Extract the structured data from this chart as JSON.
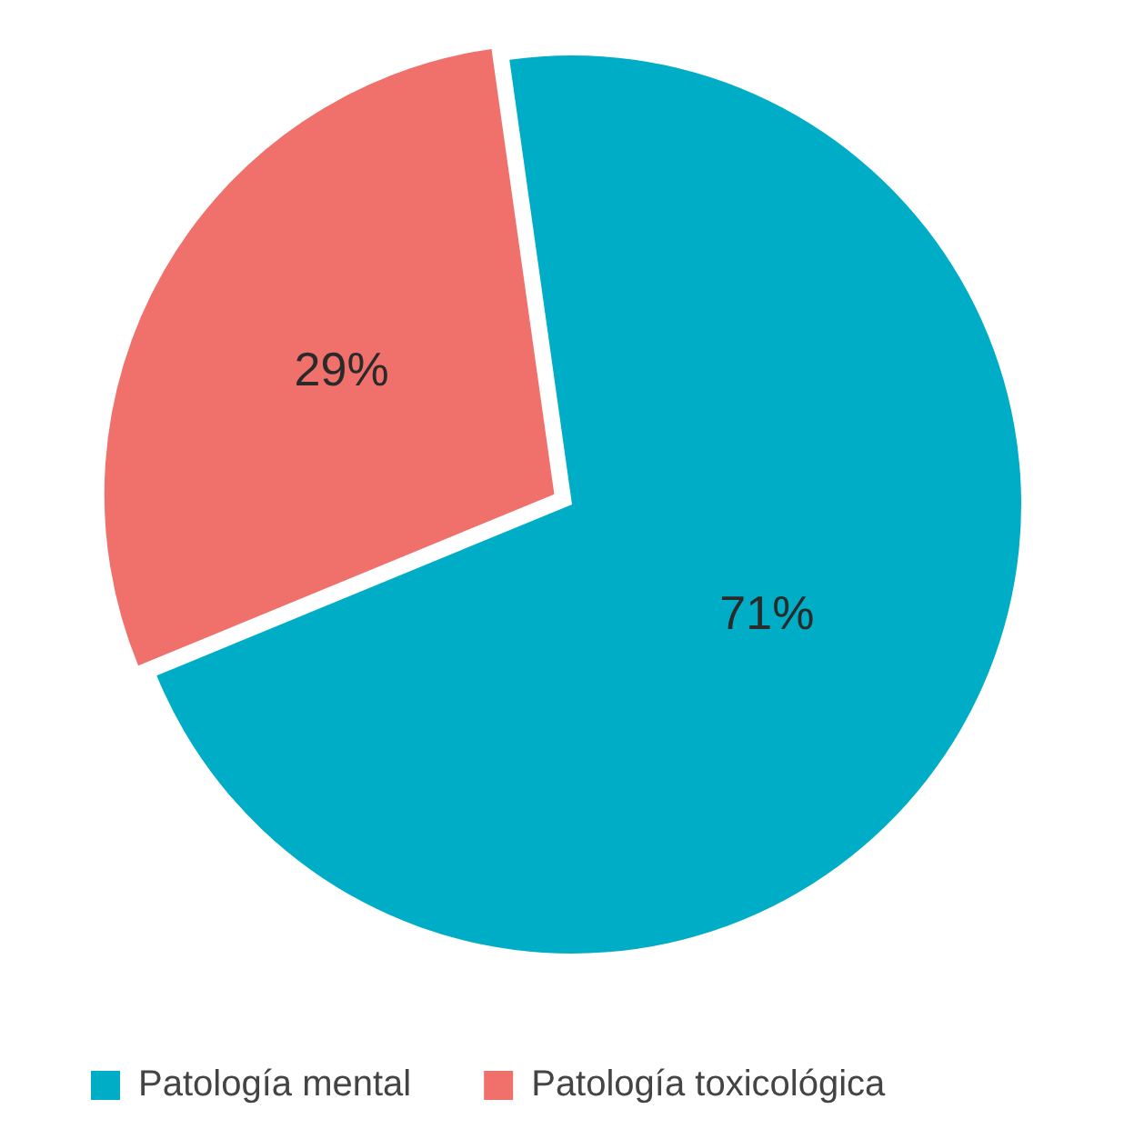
{
  "chart_data": {
    "type": "pie",
    "categories": [
      "Patología mental",
      "Patología toxicológica"
    ],
    "values": [
      71,
      29
    ],
    "colors": [
      "#00adc6",
      "#f0716b"
    ],
    "value_labels": [
      "71%",
      "29%"
    ],
    "legend": "bottom"
  }
}
